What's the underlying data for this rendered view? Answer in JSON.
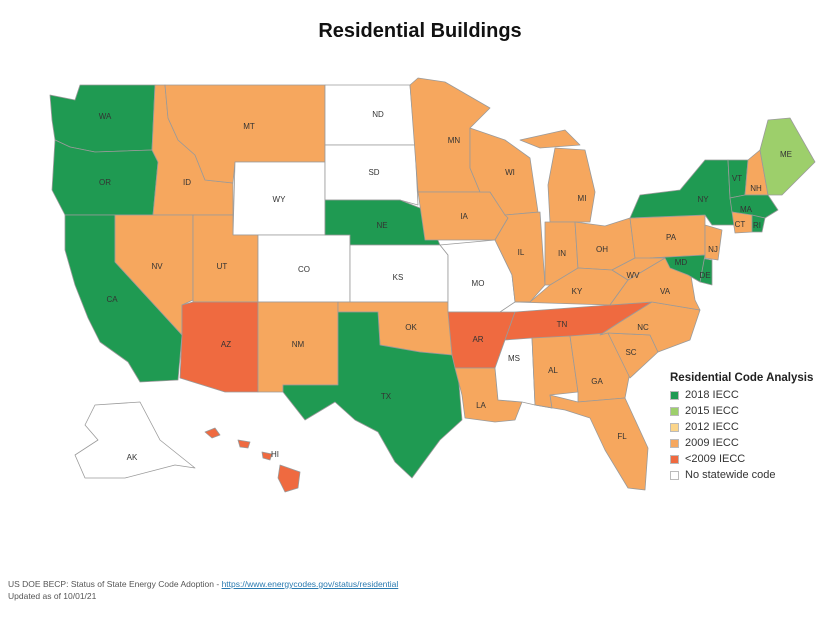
{
  "title": "Residential Buildings",
  "legend": {
    "title": "Residential Code Analysis",
    "items": [
      {
        "key": "2018",
        "label": "2018 IECC",
        "color": "#1f9a52"
      },
      {
        "key": "2015",
        "label": "2015 IECC",
        "color": "#9dcf6b"
      },
      {
        "key": "2012",
        "label": "2012 IECC",
        "color": "#fbd58a"
      },
      {
        "key": "2009",
        "label": "2009 IECC",
        "color": "#f6a75e"
      },
      {
        "key": "lt2009",
        "label": "<2009 IECC",
        "color": "#ef6a40"
      },
      {
        "key": "none",
        "label": "No statewide code",
        "color": "#ffffff"
      }
    ]
  },
  "states": [
    {
      "abbr": "WA",
      "code": "2018"
    },
    {
      "abbr": "OR",
      "code": "2018"
    },
    {
      "abbr": "CA",
      "code": "2018"
    },
    {
      "abbr": "ID",
      "code": "2009"
    },
    {
      "abbr": "NV",
      "code": "2009"
    },
    {
      "abbr": "MT",
      "code": "2009"
    },
    {
      "abbr": "WY",
      "code": "none"
    },
    {
      "abbr": "UT",
      "code": "2009"
    },
    {
      "abbr": "AZ",
      "code": "lt2009"
    },
    {
      "abbr": "CO",
      "code": "none"
    },
    {
      "abbr": "NM",
      "code": "2009"
    },
    {
      "abbr": "ND",
      "code": "none"
    },
    {
      "abbr": "SD",
      "code": "none"
    },
    {
      "abbr": "NE",
      "code": "2018"
    },
    {
      "abbr": "KS",
      "code": "none"
    },
    {
      "abbr": "OK",
      "code": "2009"
    },
    {
      "abbr": "TX",
      "code": "2018"
    },
    {
      "abbr": "MN",
      "code": "2009"
    },
    {
      "abbr": "IA",
      "code": "2009"
    },
    {
      "abbr": "MO",
      "code": "none"
    },
    {
      "abbr": "AR",
      "code": "lt2009"
    },
    {
      "abbr": "LA",
      "code": "2009"
    },
    {
      "abbr": "WI",
      "code": "2009"
    },
    {
      "abbr": "IL",
      "code": "2009"
    },
    {
      "abbr": "MI",
      "code": "2009"
    },
    {
      "abbr": "IN",
      "code": "2009"
    },
    {
      "abbr": "OH",
      "code": "2009"
    },
    {
      "abbr": "KY",
      "code": "2009"
    },
    {
      "abbr": "TN",
      "code": "lt2009"
    },
    {
      "abbr": "MS",
      "code": "none"
    },
    {
      "abbr": "AL",
      "code": "2009"
    },
    {
      "abbr": "GA",
      "code": "2009"
    },
    {
      "abbr": "FL",
      "code": "2009"
    },
    {
      "abbr": "SC",
      "code": "2009"
    },
    {
      "abbr": "NC",
      "code": "2009"
    },
    {
      "abbr": "VA",
      "code": "2009"
    },
    {
      "abbr": "WV",
      "code": "2009"
    },
    {
      "abbr": "PA",
      "code": "2009"
    },
    {
      "abbr": "NY",
      "code": "2018"
    },
    {
      "abbr": "VT",
      "code": "2018"
    },
    {
      "abbr": "NH",
      "code": "2009"
    },
    {
      "abbr": "ME",
      "code": "2015"
    },
    {
      "abbr": "MA",
      "code": "2018"
    },
    {
      "abbr": "RI",
      "code": "2018"
    },
    {
      "abbr": "CT",
      "code": "2009"
    },
    {
      "abbr": "NJ",
      "code": "2009"
    },
    {
      "abbr": "DE",
      "code": "2018"
    },
    {
      "abbr": "MD",
      "code": "2018"
    },
    {
      "abbr": "AK",
      "code": "none"
    },
    {
      "abbr": "HI",
      "code": "lt2009"
    }
  ],
  "footer": {
    "source_text": "US DOE BECP: Status of State Energy Code Adoption - ",
    "link_text": "https://www.energycodes.gov/status/residential",
    "updated": "Updated as of 10/01/21"
  }
}
